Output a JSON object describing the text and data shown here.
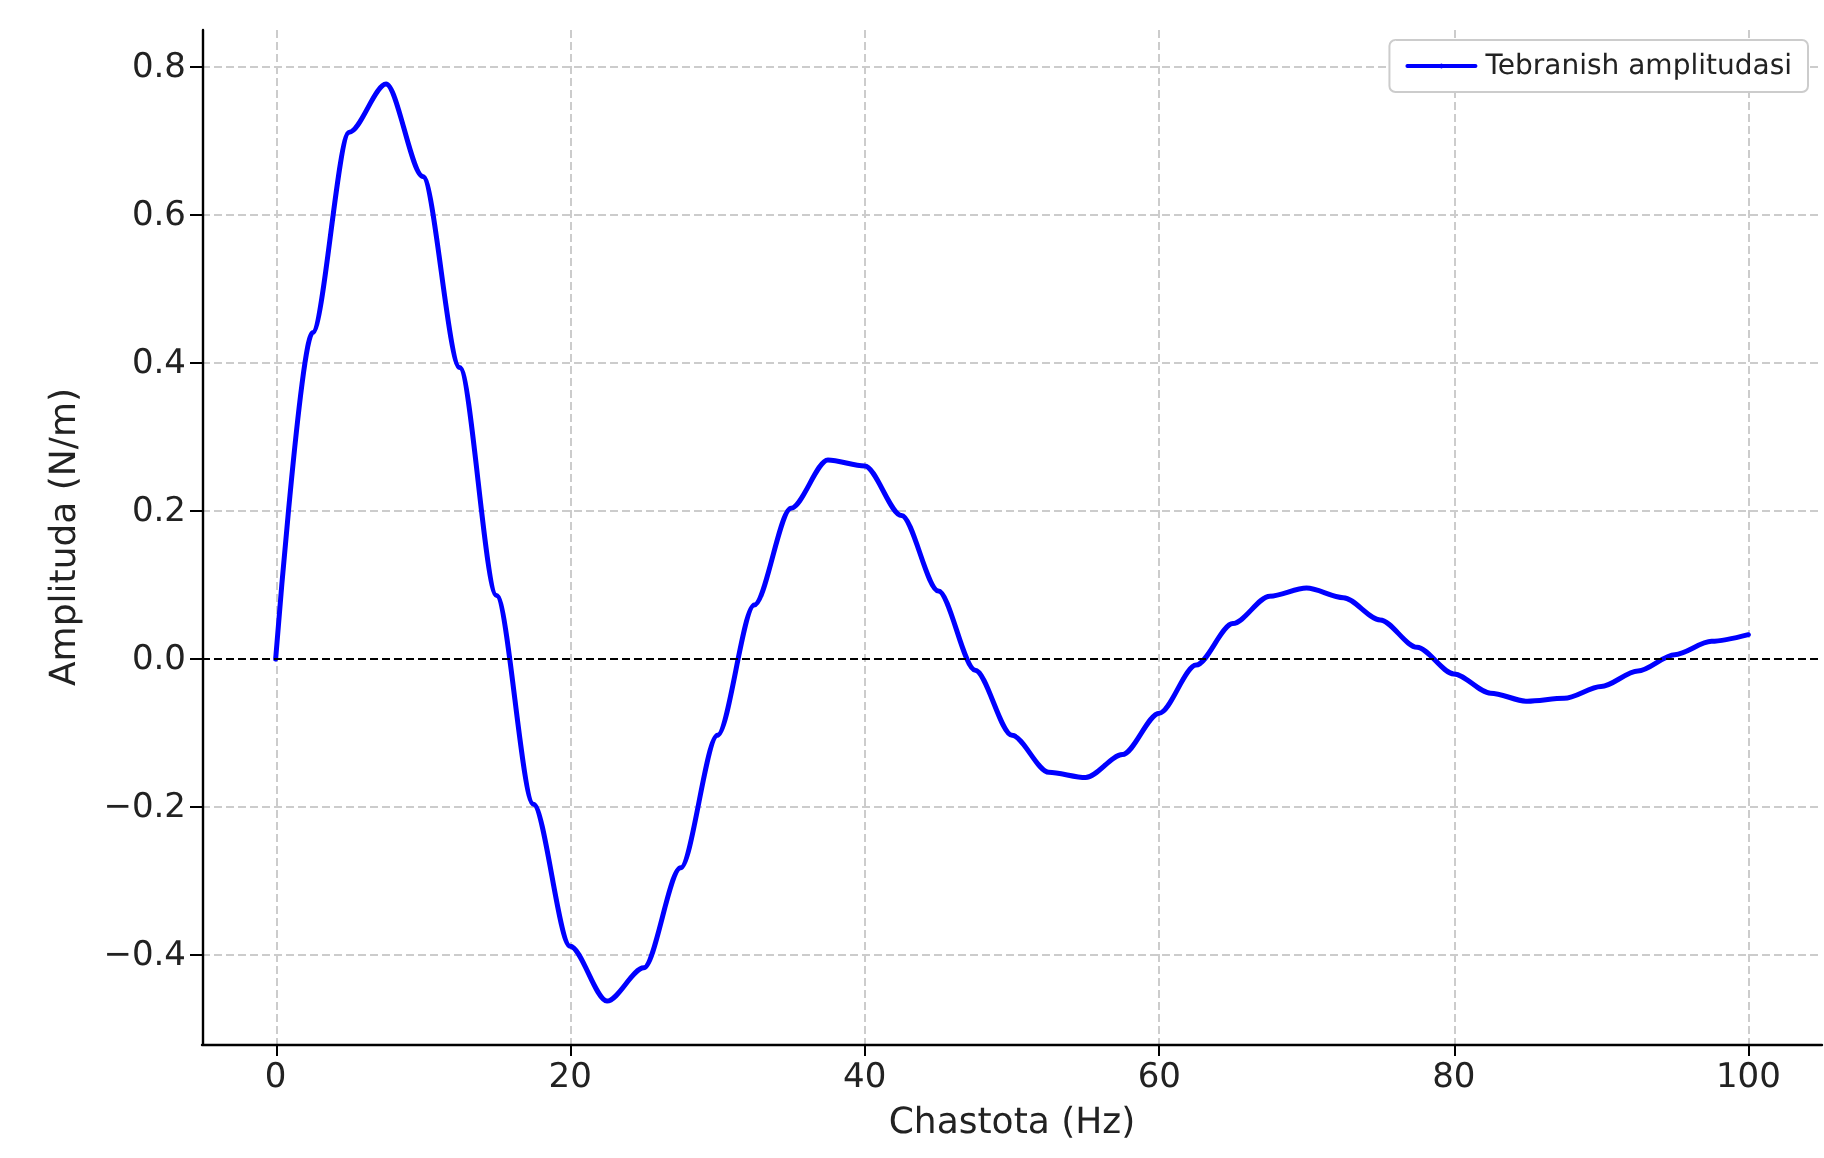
{
  "chart_data": {
    "type": "line",
    "xlabel": "Chastota (Hz)",
    "ylabel": "Amplituda (N/m)",
    "x": [
      0,
      2.5,
      5,
      7.5,
      10,
      12.5,
      15,
      17.5,
      20,
      22.5,
      25,
      27.5,
      30,
      32.5,
      35,
      37.5,
      40,
      42.5,
      45,
      47.5,
      50,
      52.5,
      55,
      57.5,
      60,
      62.5,
      65,
      67.5,
      70,
      72.5,
      75,
      77.5,
      80,
      82.5,
      85,
      87.5,
      90,
      92.5,
      95,
      97.5,
      100
    ],
    "series": [
      {
        "name": "Tebranish amplitudasi",
        "color": "#0000ff",
        "values": [
          0,
          0.441,
          0.712,
          0.777,
          0.652,
          0.394,
          0.086,
          -0.196,
          -0.388,
          -0.462,
          -0.417,
          -0.282,
          -0.103,
          0.073,
          0.204,
          0.269,
          0.261,
          0.194,
          0.092,
          -0.015,
          -0.103,
          -0.153,
          -0.16,
          -0.129,
          -0.073,
          -0.008,
          0.048,
          0.085,
          0.096,
          0.083,
          0.053,
          0.016,
          -0.02,
          -0.046,
          -0.057,
          -0.053,
          -0.037,
          -0.016,
          0.006,
          0.024,
          0.033
        ]
      }
    ],
    "xlim": [
      -5,
      105
    ],
    "ylim": [
      -0.52,
      0.85
    ],
    "xticks": [
      0,
      20,
      40,
      60,
      80,
      100
    ],
    "yticks": [
      {
        "value": -0.4,
        "label": "−0.4"
      },
      {
        "value": -0.2,
        "label": "−0.2"
      },
      {
        "value": 0,
        "label": "0.0"
      },
      {
        "value": 0.2,
        "label": "0.2"
      },
      {
        "value": 0.4,
        "label": "0.4"
      },
      {
        "value": 0.6,
        "label": "0.6"
      },
      {
        "value": 0.8,
        "label": "0.8"
      }
    ],
    "ref_lines": [
      {
        "axis": "y",
        "value": 0,
        "color": "#000000",
        "line_style": "dashed"
      }
    ],
    "grid": true,
    "legend": "top right",
    "marker": "none",
    "line_style": "solid"
  }
}
